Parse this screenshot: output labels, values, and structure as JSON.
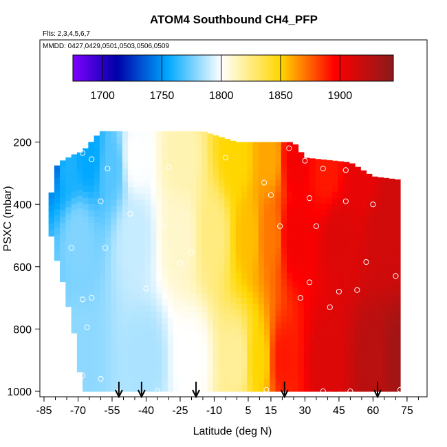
{
  "title": "ATOM4 Southbound CH4_PFP",
  "flights_note": "Flts: 2,3,4,5,6,7",
  "dates_note": "MMDD: 0427,0429,0501,0503,0506,0509",
  "chart_data": {
    "type": "heatmap",
    "title": "ATOM4 Southbound CH4_PFP",
    "xlabel": "Latitude (deg N)",
    "ylabel": "PSXC (mbar)",
    "x_ticks": [
      -85,
      -70,
      -55,
      -40,
      -25,
      -10,
      5,
      15,
      30,
      45,
      60,
      75
    ],
    "y_ticks": [
      200,
      400,
      600,
      800,
      1000
    ],
    "xlim": [
      -85,
      82
    ],
    "ylim": [
      1000,
      0
    ],
    "y_inverted": true,
    "colorbar": {
      "min": 1675,
      "max": 1945,
      "ticks": [
        1700,
        1750,
        1800,
        1850,
        1900
      ],
      "colors": [
        "#7f00ff",
        "#0000a8",
        "#00a8ff",
        "#ffffff",
        "#ffd700",
        "#ff0000",
        "#8b1a1a"
      ]
    },
    "column_pressure_extent": [
      {
        "lat": -83,
        "top": 420,
        "bottom": 460
      },
      {
        "lat": -80,
        "top": 280,
        "bottom": 560
      },
      {
        "lat": -77,
        "top": 260,
        "bottom": 640
      },
      {
        "lat": -72,
        "top": 240,
        "bottom": 800
      },
      {
        "lat": -68,
        "top": 230,
        "bottom": 1000
      },
      {
        "lat": -60,
        "top": 165,
        "bottom": 1000
      },
      {
        "lat": -40,
        "top": 165,
        "bottom": 1000
      },
      {
        "lat": -15,
        "top": 165,
        "bottom": 1000
      },
      {
        "lat": 0,
        "top": 200,
        "bottom": 1000
      },
      {
        "lat": 25,
        "top": 200,
        "bottom": 1000
      },
      {
        "lat": 30,
        "top": 250,
        "bottom": 1000
      },
      {
        "lat": 50,
        "top": 265,
        "bottom": 1000
      },
      {
        "lat": 60,
        "top": 310,
        "bottom": 1000
      },
      {
        "lat": 71,
        "top": 320,
        "bottom": 1000
      }
    ],
    "sample_field_ch4": [
      {
        "lat": -80,
        "p": 250,
        "ch4": 1740
      },
      {
        "lat": -75,
        "p": 280,
        "ch4": 1760
      },
      {
        "lat": -65,
        "p": 250,
        "ch4": 1755
      },
      {
        "lat": -55,
        "p": 280,
        "ch4": 1770
      },
      {
        "lat": -45,
        "p": 250,
        "ch4": 1800
      },
      {
        "lat": -25,
        "p": 250,
        "ch4": 1815
      },
      {
        "lat": 0,
        "p": 250,
        "ch4": 1850
      },
      {
        "lat": 15,
        "p": 250,
        "ch4": 1860
      },
      {
        "lat": 25,
        "p": 250,
        "ch4": 1900
      },
      {
        "lat": 40,
        "p": 300,
        "ch4": 1890
      },
      {
        "lat": 55,
        "p": 300,
        "ch4": 1905
      },
      {
        "lat": 70,
        "p": 400,
        "ch4": 1915
      },
      {
        "lat": -70,
        "p": 500,
        "ch4": 1778
      },
      {
        "lat": -45,
        "p": 500,
        "ch4": 1790
      },
      {
        "lat": -25,
        "p": 500,
        "ch4": 1810
      },
      {
        "lat": -10,
        "p": 500,
        "ch4": 1825
      },
      {
        "lat": 5,
        "p": 500,
        "ch4": 1855
      },
      {
        "lat": 15,
        "p": 500,
        "ch4": 1870
      },
      {
        "lat": 25,
        "p": 500,
        "ch4": 1900
      },
      {
        "lat": 45,
        "p": 500,
        "ch4": 1910
      },
      {
        "lat": 65,
        "p": 500,
        "ch4": 1915
      },
      {
        "lat": -70,
        "p": 900,
        "ch4": 1780
      },
      {
        "lat": -40,
        "p": 900,
        "ch4": 1785
      },
      {
        "lat": -20,
        "p": 900,
        "ch4": 1800
      },
      {
        "lat": 0,
        "p": 900,
        "ch4": 1820
      },
      {
        "lat": 10,
        "p": 900,
        "ch4": 1850
      },
      {
        "lat": 20,
        "p": 900,
        "ch4": 1890
      },
      {
        "lat": 40,
        "p": 900,
        "ch4": 1910
      },
      {
        "lat": 60,
        "p": 900,
        "ch4": 1925
      },
      {
        "lat": 72,
        "p": 900,
        "ch4": 1935
      }
    ],
    "sample_points": [
      {
        "lat": -80,
        "p": 245
      },
      {
        "lat": -68,
        "p": 235
      },
      {
        "lat": -64,
        "p": 255
      },
      {
        "lat": -57,
        "p": 285
      },
      {
        "lat": -46,
        "p": 250
      },
      {
        "lat": -30,
        "p": 280
      },
      {
        "lat": -5,
        "p": 250
      },
      {
        "lat": 23,
        "p": 220
      },
      {
        "lat": 30,
        "p": 260
      },
      {
        "lat": 38,
        "p": 285
      },
      {
        "lat": 48,
        "p": 290
      },
      {
        "lat": 12,
        "p": 330
      },
      {
        "lat": 15,
        "p": 370
      },
      {
        "lat": 32,
        "p": 380
      },
      {
        "lat": 48,
        "p": 390
      },
      {
        "lat": 60,
        "p": 400
      },
      {
        "lat": 19,
        "p": 470
      },
      {
        "lat": 35,
        "p": 470
      },
      {
        "lat": -60,
        "p": 390
      },
      {
        "lat": -47,
        "p": 430
      },
      {
        "lat": -33,
        "p": 470
      },
      {
        "lat": -73,
        "p": 540
      },
      {
        "lat": -58,
        "p": 540
      },
      {
        "lat": -20,
        "p": 555
      },
      {
        "lat": 57,
        "p": 585
      },
      {
        "lat": -25,
        "p": 590
      },
      {
        "lat": 70,
        "p": 630
      },
      {
        "lat": 32,
        "p": 650
      },
      {
        "lat": -40,
        "p": 670
      },
      {
        "lat": 45,
        "p": 680
      },
      {
        "lat": 28,
        "p": 700
      },
      {
        "lat": 53,
        "p": 675
      },
      {
        "lat": -64,
        "p": 700
      },
      {
        "lat": -68,
        "p": 705
      },
      {
        "lat": 41,
        "p": 730
      },
      {
        "lat": -66,
        "p": 795
      },
      {
        "lat": -22,
        "p": 875
      },
      {
        "lat": -68,
        "p": 950
      },
      {
        "lat": -60,
        "p": 960
      },
      {
        "lat": -52,
        "p": 1000
      },
      {
        "lat": -35,
        "p": 1000
      },
      {
        "lat": -20,
        "p": 1000
      },
      {
        "lat": 13,
        "p": 995
      },
      {
        "lat": 38,
        "p": 1000
      },
      {
        "lat": 50,
        "p": 1000
      },
      {
        "lat": 72,
        "p": 995
      }
    ],
    "arrow_latitudes": [
      -52,
      -42,
      -18,
      21,
      62
    ]
  }
}
